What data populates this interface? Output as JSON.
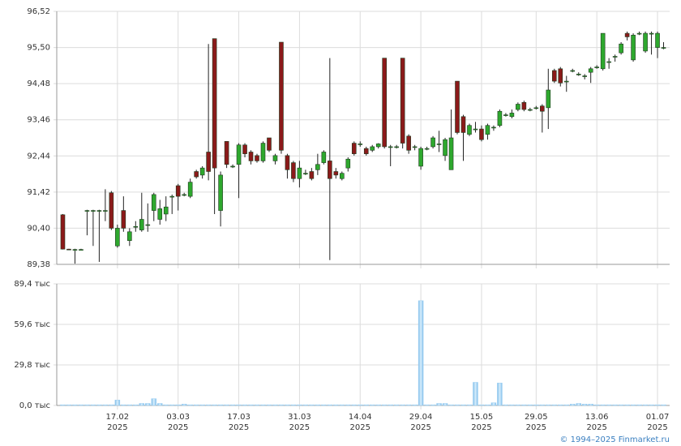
{
  "chart_data": [
    {
      "type": "candlestick",
      "up_color": "#2ea82e",
      "down_color": "#8b1a1a",
      "outline": "#1e3a1e",
      "grid": true,
      "ylim": [
        89.38,
        96.52
      ],
      "xlim": [
        -1,
        100
      ],
      "yticks": [
        {
          "value": 89.38,
          "label": "89,38"
        },
        {
          "value": 90.4,
          "label": "90,40"
        },
        {
          "value": 91.42,
          "label": "91,42"
        },
        {
          "value": 92.44,
          "label": "92,44"
        },
        {
          "value": 93.46,
          "label": "93,46"
        },
        {
          "value": 94.48,
          "label": "94,48"
        },
        {
          "value": 95.5,
          "label": "95,50"
        },
        {
          "value": 96.52,
          "label": "96,52"
        }
      ],
      "ohlc": [
        [
          90.78,
          90.8,
          89.8,
          89.81
        ],
        [
          89.81,
          89.82,
          89.78,
          89.8
        ],
        [
          89.8,
          89.82,
          89.4,
          89.8
        ],
        [
          89.8,
          89.82,
          89.78,
          89.8
        ],
        [
          90.88,
          90.92,
          90.2,
          90.9
        ],
        [
          90.9,
          90.92,
          89.9,
          90.9
        ],
        [
          90.9,
          90.92,
          89.45,
          90.9
        ],
        [
          90.9,
          91.5,
          90.6,
          90.9
        ],
        [
          91.4,
          91.45,
          90.35,
          90.4
        ],
        [
          89.9,
          90.5,
          89.85,
          90.4
        ],
        [
          90.9,
          91.3,
          90.3,
          90.4
        ],
        [
          90.05,
          90.4,
          89.9,
          90.3
        ],
        [
          90.45,
          90.6,
          90.3,
          90.45
        ],
        [
          90.35,
          91.4,
          90.3,
          90.65
        ],
        [
          90.5,
          91.1,
          90.3,
          90.5
        ],
        [
          90.9,
          91.4,
          90.6,
          91.35
        ],
        [
          90.65,
          91.2,
          90.5,
          90.95
        ],
        [
          90.8,
          91.3,
          90.6,
          91.0
        ],
        [
          91.3,
          91.35,
          90.8,
          91.3
        ],
        [
          91.6,
          91.65,
          90.9,
          91.3
        ],
        [
          91.35,
          91.4,
          91.3,
          91.35
        ],
        [
          91.3,
          91.8,
          91.25,
          91.7
        ],
        [
          92.0,
          92.05,
          91.8,
          91.85
        ],
        [
          91.9,
          92.15,
          91.8,
          92.1
        ],
        [
          92.55,
          95.6,
          91.75,
          92.0
        ],
        [
          95.75,
          95.75,
          90.8,
          92.1
        ],
        [
          90.9,
          92.0,
          90.45,
          91.9
        ],
        [
          92.85,
          92.85,
          92.1,
          92.2
        ],
        [
          92.15,
          92.2,
          92.1,
          92.15
        ],
        [
          92.2,
          92.8,
          91.25,
          92.75
        ],
        [
          92.75,
          92.8,
          92.4,
          92.5
        ],
        [
          92.55,
          92.6,
          92.2,
          92.3
        ],
        [
          92.45,
          92.5,
          92.25,
          92.3
        ],
        [
          92.3,
          92.85,
          92.25,
          92.8
        ],
        [
          92.95,
          92.95,
          92.55,
          92.6
        ],
        [
          92.3,
          92.5,
          92.2,
          92.45
        ],
        [
          95.65,
          95.65,
          92.5,
          92.6
        ],
        [
          92.45,
          92.5,
          91.8,
          92.05
        ],
        [
          92.25,
          92.3,
          91.7,
          91.8
        ],
        [
          91.8,
          92.3,
          91.55,
          92.1
        ],
        [
          91.95,
          92.05,
          91.9,
          91.95
        ],
        [
          92.0,
          92.1,
          91.75,
          91.8
        ],
        [
          92.05,
          92.5,
          91.9,
          92.2
        ],
        [
          92.25,
          92.6,
          92.2,
          92.55
        ],
        [
          92.3,
          95.2,
          89.5,
          91.8
        ],
        [
          92.0,
          92.1,
          91.8,
          91.9
        ],
        [
          91.8,
          92.0,
          91.75,
          91.95
        ],
        [
          92.1,
          92.4,
          92.0,
          92.35
        ],
        [
          92.8,
          92.85,
          92.45,
          92.5
        ],
        [
          92.78,
          92.85,
          92.7,
          92.78
        ],
        [
          92.65,
          92.7,
          92.45,
          92.5
        ],
        [
          92.6,
          92.75,
          92.55,
          92.7
        ],
        [
          92.7,
          92.8,
          92.65,
          92.78
        ],
        [
          95.2,
          95.2,
          92.65,
          92.7
        ],
        [
          92.7,
          92.75,
          92.15,
          92.7
        ],
        [
          92.7,
          92.75,
          92.65,
          92.7
        ],
        [
          95.2,
          95.2,
          92.65,
          92.8
        ],
        [
          93.0,
          93.05,
          92.5,
          92.6
        ],
        [
          92.7,
          92.75,
          92.6,
          92.7
        ],
        [
          92.15,
          92.7,
          92.05,
          92.65
        ],
        [
          92.65,
          92.7,
          92.6,
          92.65
        ],
        [
          92.7,
          93.0,
          92.65,
          92.95
        ],
        [
          92.78,
          93.15,
          92.55,
          92.78
        ],
        [
          92.45,
          92.95,
          92.3,
          92.9
        ],
        [
          92.05,
          93.75,
          92.05,
          92.95
        ],
        [
          94.55,
          94.55,
          93.05,
          93.1
        ],
        [
          93.55,
          93.6,
          92.3,
          93.1
        ],
        [
          93.05,
          93.35,
          93.0,
          93.3
        ],
        [
          93.2,
          93.4,
          93.1,
          93.2
        ],
        [
          93.2,
          93.3,
          92.85,
          92.9
        ],
        [
          93.05,
          93.35,
          92.9,
          93.3
        ],
        [
          93.25,
          93.3,
          93.15,
          93.25
        ],
        [
          93.3,
          93.75,
          93.25,
          93.7
        ],
        [
          93.6,
          93.65,
          93.55,
          93.6
        ],
        [
          93.55,
          93.75,
          93.5,
          93.65
        ],
        [
          93.75,
          93.95,
          93.7,
          93.9
        ],
        [
          93.95,
          94.0,
          93.7,
          93.75
        ],
        [
          93.75,
          93.8,
          93.7,
          93.75
        ],
        [
          93.8,
          93.85,
          93.75,
          93.8
        ],
        [
          93.85,
          93.9,
          93.1,
          93.7
        ],
        [
          93.8,
          94.9,
          93.2,
          94.3
        ],
        [
          94.85,
          94.9,
          94.5,
          94.55
        ],
        [
          94.9,
          94.95,
          94.4,
          94.5
        ],
        [
          94.55,
          94.7,
          94.25,
          94.55
        ],
        [
          94.85,
          94.9,
          94.8,
          94.85
        ],
        [
          94.75,
          94.8,
          94.7,
          94.75
        ],
        [
          94.7,
          94.75,
          94.6,
          94.7
        ],
        [
          94.8,
          94.95,
          94.5,
          94.9
        ],
        [
          94.95,
          95.0,
          94.9,
          94.95
        ],
        [
          94.9,
          95.9,
          94.85,
          95.9
        ],
        [
          95.1,
          95.2,
          94.9,
          95.1
        ],
        [
          95.25,
          95.3,
          95.1,
          95.25
        ],
        [
          95.35,
          95.65,
          95.3,
          95.6
        ],
        [
          95.9,
          95.95,
          95.7,
          95.8
        ],
        [
          95.15,
          95.9,
          95.1,
          95.85
        ],
        [
          95.9,
          95.95,
          95.85,
          95.9
        ],
        [
          95.4,
          95.95,
          95.35,
          95.9
        ],
        [
          95.9,
          95.95,
          95.3,
          95.9
        ],
        [
          95.5,
          95.95,
          95.2,
          95.9
        ],
        [
          95.5,
          95.65,
          95.45,
          95.5
        ]
      ]
    },
    {
      "type": "bar",
      "color": "#9ccff2",
      "grid": true,
      "ylim": [
        0,
        89.4
      ],
      "xlim": [
        -1,
        100
      ],
      "yticks": [
        {
          "value": 0,
          "label": "0,0 тыс"
        },
        {
          "value": 29.8,
          "label": "29,8 тыс"
        },
        {
          "value": 59.6,
          "label": "59,6 тыс"
        },
        {
          "value": 89.4,
          "label": "89,4 тыс"
        }
      ],
      "xticks": [
        {
          "value": 9,
          "label": [
            "17.02",
            "2025"
          ]
        },
        {
          "value": 19,
          "label": [
            "03.03",
            "2025"
          ]
        },
        {
          "value": 29,
          "label": [
            "17.03",
            "2025"
          ]
        },
        {
          "value": 39,
          "label": [
            "31.03",
            "2025"
          ]
        },
        {
          "value": 49,
          "label": [
            "14.04",
            "2025"
          ]
        },
        {
          "value": 59,
          "label": [
            "29.04",
            "2025"
          ]
        },
        {
          "value": 69,
          "label": [
            "15.05",
            "2025"
          ]
        },
        {
          "value": 78,
          "label": [
            "29.05",
            "2025"
          ]
        },
        {
          "value": 88,
          "label": [
            "13.06",
            "2025"
          ]
        },
        {
          "value": 98,
          "label": [
            "01.07",
            "2025"
          ]
        }
      ],
      "values": [
        0.5,
        0.5,
        0.5,
        0.5,
        0.5,
        0.5,
        0.5,
        0.5,
        0.5,
        4,
        0.5,
        0.5,
        0.5,
        1.5,
        1.5,
        5,
        1.5,
        0.5,
        0.5,
        0.5,
        1,
        0.5,
        0.5,
        0.5,
        0.5,
        0.5,
        0.5,
        0.5,
        0.5,
        0.5,
        0.5,
        0.5,
        0.5,
        0.5,
        0.5,
        0.5,
        0.5,
        0.5,
        0.5,
        0.5,
        0.5,
        0.5,
        0.5,
        0.5,
        0.5,
        0.5,
        0.5,
        0.5,
        0.5,
        0.5,
        0.5,
        0.5,
        0.5,
        0.5,
        0.5,
        0.5,
        0.5,
        0.5,
        0.5,
        77,
        0.5,
        0.5,
        1.5,
        1.5,
        0.5,
        0.5,
        0.5,
        0.5,
        17,
        0.5,
        0.5,
        2,
        16.5,
        0.5,
        0.5,
        0.5,
        0.5,
        0.5,
        0.5,
        0.5,
        0.5,
        0.5,
        0.5,
        0.5,
        1,
        1.5,
        1,
        1,
        0.5,
        0.5,
        0.5,
        0.5,
        0.5,
        0.5,
        0.5,
        0.5,
        0.5,
        0.5,
        0.5,
        0.5
      ]
    }
  ],
  "footer": "© 1994–2025 Finmarket.ru"
}
